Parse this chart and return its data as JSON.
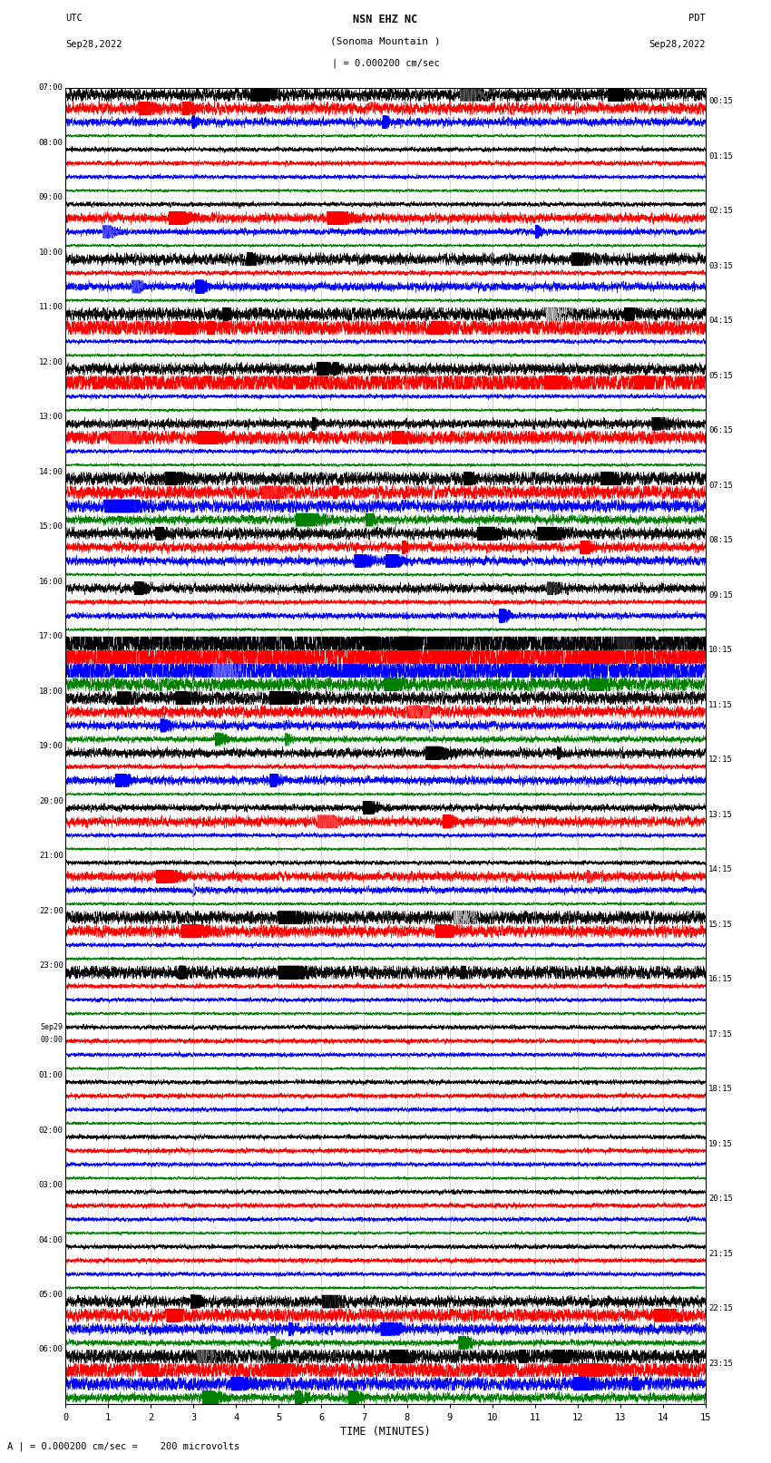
{
  "title_line1": "NSN EHZ NC",
  "title_line2": "(Sonoma Mountain )",
  "title_line3": "| = 0.000200 cm/sec",
  "left_header_line1": "UTC",
  "left_header_line2": "Sep28,2022",
  "right_header_line1": "PDT",
  "right_header_line2": "Sep28,2022",
  "left_times": [
    "07:00",
    "08:00",
    "09:00",
    "10:00",
    "11:00",
    "12:00",
    "13:00",
    "14:00",
    "15:00",
    "16:00",
    "17:00",
    "18:00",
    "19:00",
    "20:00",
    "21:00",
    "22:00",
    "23:00",
    "Sep29\n00:00",
    "01:00",
    "02:00",
    "03:00",
    "04:00",
    "05:00",
    "06:00"
  ],
  "right_times": [
    "00:15",
    "01:15",
    "02:15",
    "03:15",
    "04:15",
    "05:15",
    "06:15",
    "07:15",
    "08:15",
    "09:15",
    "10:15",
    "11:15",
    "12:15",
    "13:15",
    "14:15",
    "15:15",
    "16:15",
    "17:15",
    "18:15",
    "19:15",
    "20:15",
    "21:15",
    "22:15",
    "23:15"
  ],
  "n_rows": 24,
  "traces_per_row": 4,
  "colors": [
    "black",
    "red",
    "blue",
    "green"
  ],
  "xlabel": "TIME (MINUTES)",
  "bottom_label": "A | = 0.000200 cm/sec =    200 microvolts",
  "x_ticks": [
    0,
    1,
    2,
    3,
    4,
    5,
    6,
    7,
    8,
    9,
    10,
    11,
    12,
    13,
    14,
    15
  ],
  "xlim": [
    0,
    15
  ],
  "figsize": [
    8.5,
    16.13
  ],
  "dpi": 100,
  "background_color": "white",
  "seed": 42
}
